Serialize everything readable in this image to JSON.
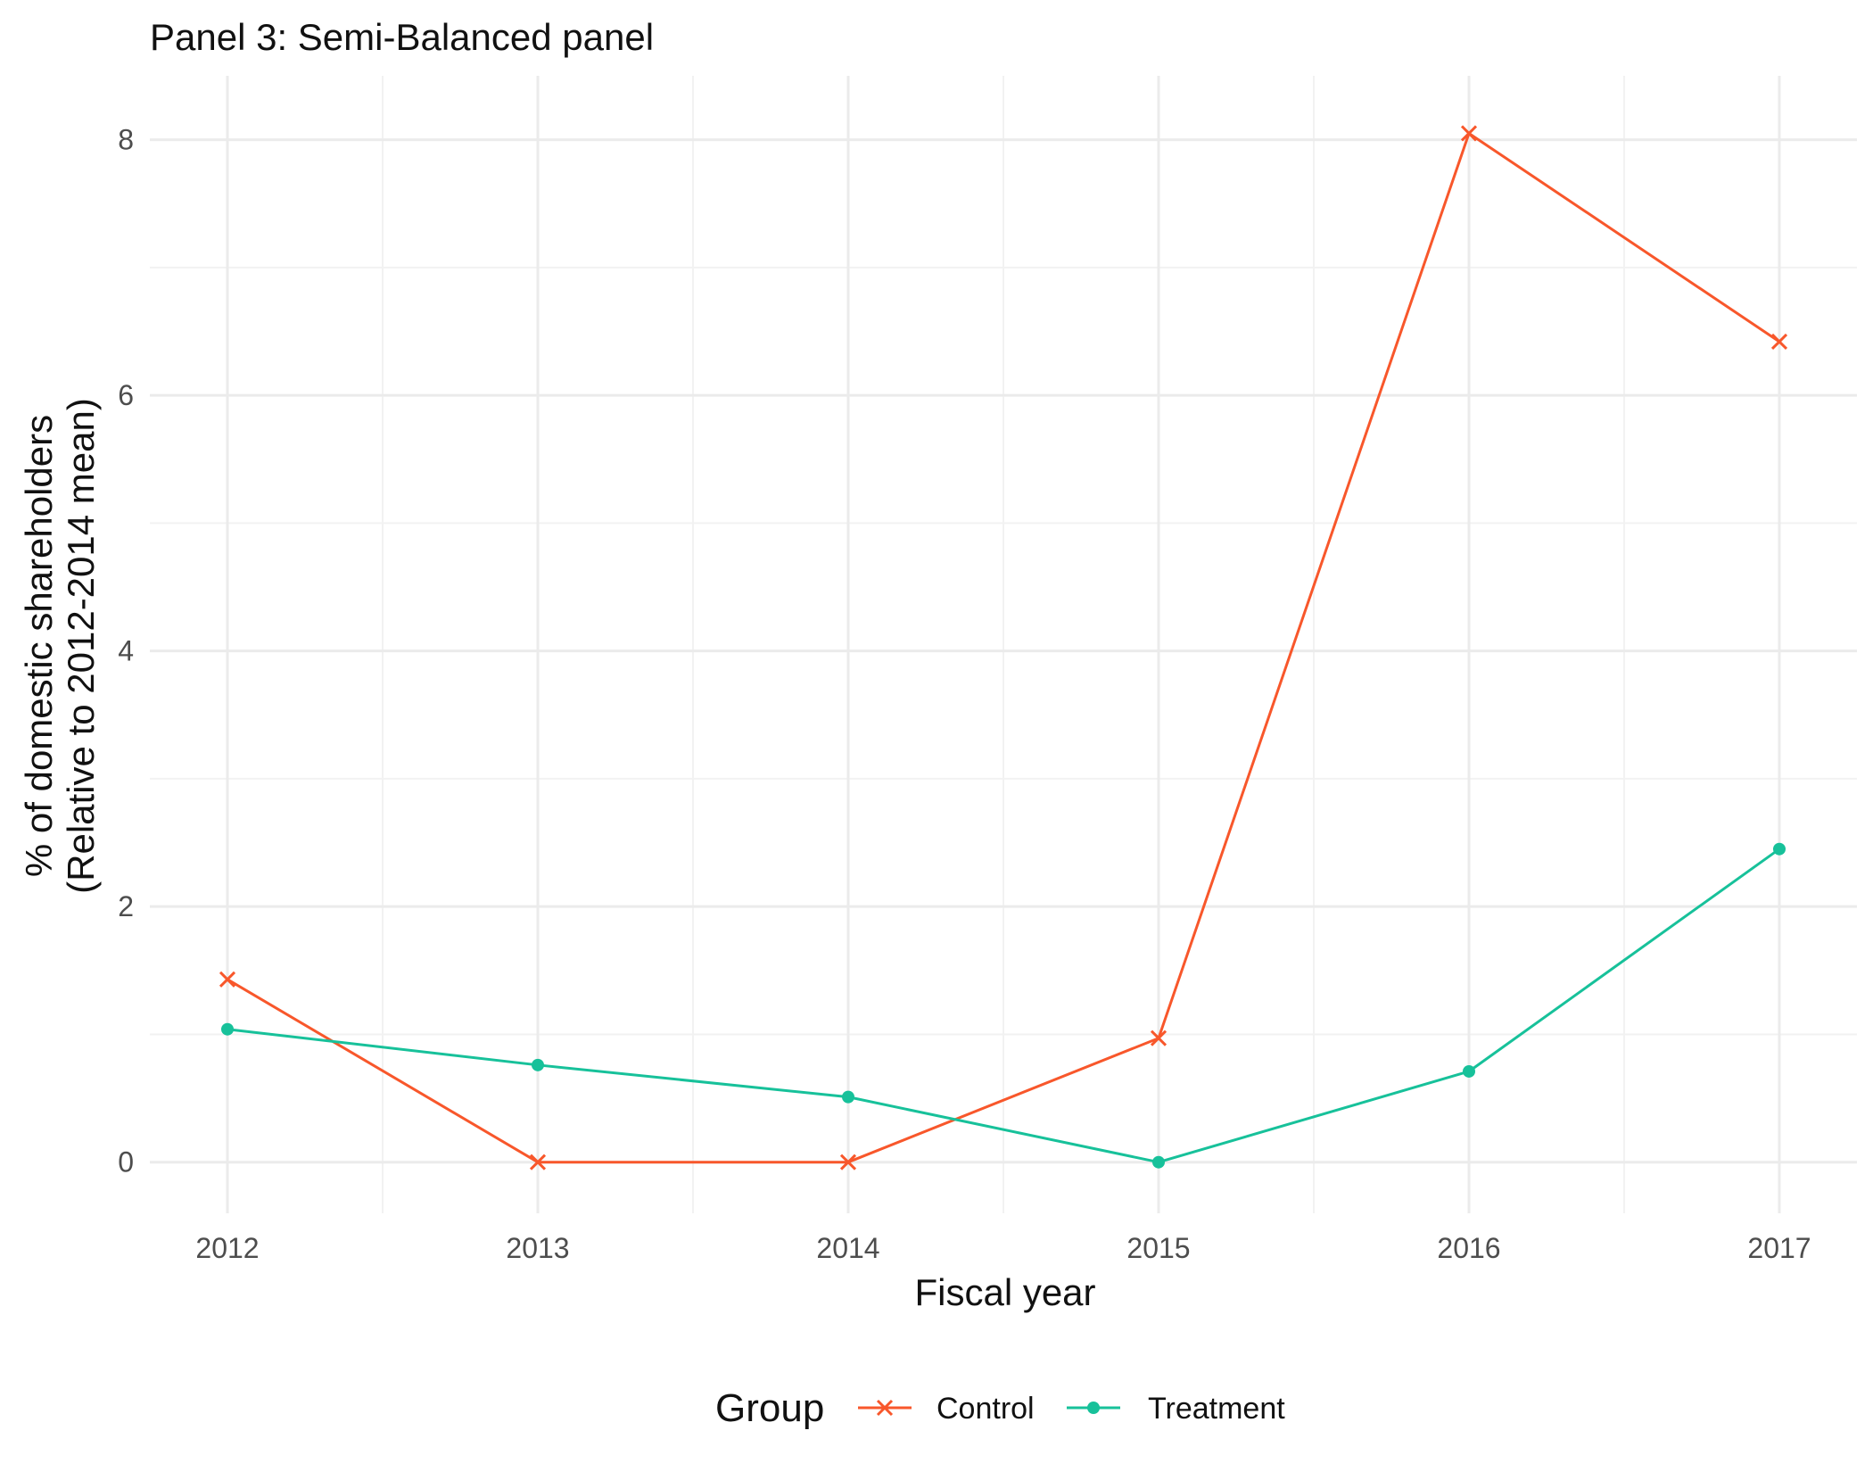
{
  "chart_data": {
    "type": "line",
    "title": "Panel 3: Semi-Balanced panel",
    "xlabel": "Fiscal year",
    "ylabel_lines": [
      "% of domestic shareholders",
      "(Relative to 2012-2014 mean)"
    ],
    "categories": [
      "2012",
      "2013",
      "2014",
      "2015",
      "2016",
      "2017"
    ],
    "x": [
      2012,
      2013,
      2014,
      2015,
      2016,
      2017
    ],
    "y_ticks": [
      0,
      2,
      4,
      6,
      8
    ],
    "y_tick_labels": [
      "0",
      "2",
      "4",
      "6",
      "8"
    ],
    "xlim": [
      2011.75,
      2017.25
    ],
    "ylim": [
      -0.4,
      8.5
    ],
    "grid": true,
    "legend": {
      "title": "Group",
      "position": "bottom"
    },
    "series": [
      {
        "name": "Control",
        "color": "#f8572b",
        "marker": "cross",
        "values": [
          1.43,
          0.0,
          0.0,
          0.97,
          8.05,
          6.42
        ]
      },
      {
        "name": "Treatment",
        "color": "#17c19a",
        "marker": "dot",
        "values": [
          1.04,
          0.76,
          0.51,
          0.0,
          0.71,
          2.45
        ]
      }
    ]
  }
}
